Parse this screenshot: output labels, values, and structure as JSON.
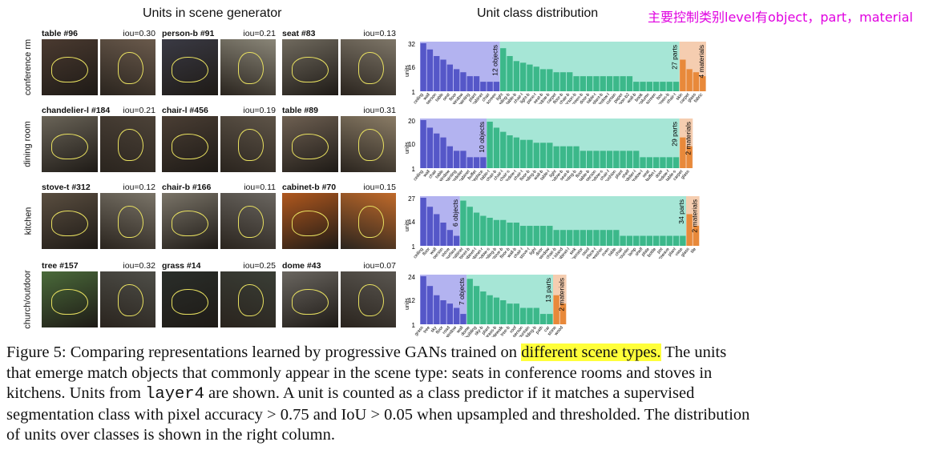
{
  "headers": {
    "left": "Units in scene generator",
    "right": "Unit class distribution",
    "note": "主要控制类别level有object，part，material"
  },
  "rows": [
    {
      "scene": "conference rm",
      "cells": [
        {
          "name": "table #96",
          "iou": "iou=0.30",
          "bg1": "#4a3a30",
          "bg2": "#6a5a4c"
        },
        {
          "name": "person-b #91",
          "iou": "iou=0.21",
          "bg1": "#3a3a44",
          "bg2": "#8a8678"
        },
        {
          "name": "seat #83",
          "iou": "iou=0.13",
          "bg1": "#706a5e",
          "bg2": "#7e7668"
        }
      ]
    },
    {
      "scene": "dining room",
      "cells": [
        {
          "name": "chandelier-l #184",
          "iou": "iou=0.21",
          "bg1": "#6a6458",
          "bg2": "#4c4238"
        },
        {
          "name": "chair-l #456",
          "iou": "iou=0.19",
          "bg1": "#4a3e34",
          "bg2": "#5e5448"
        },
        {
          "name": "table #89",
          "iou": "iou=0.31",
          "bg1": "#6e6052",
          "bg2": "#8a7c66"
        }
      ]
    },
    {
      "scene": "kitchen",
      "cells": [
        {
          "name": "stove-t #312",
          "iou": "iou=0.12",
          "bg1": "#5a4e40",
          "bg2": "#7a7468"
        },
        {
          "name": "chair-b #166",
          "iou": "iou=0.11",
          "bg1": "#7a7468",
          "bg2": "#6a6660"
        },
        {
          "name": "cabinet-b #70",
          "iou": "iou=0.15",
          "bg1": "#b0581e",
          "bg2": "#c06a2a"
        }
      ]
    },
    {
      "scene": "church/outdoor",
      "cells": [
        {
          "name": "tree #157",
          "iou": "iou=0.32",
          "bg1": "#4a6a3a",
          "bg2": "#4e4e48"
        },
        {
          "name": "grass #14",
          "iou": "iou=0.25",
          "bg1": "#2a2e2a",
          "bg2": "#3a3e36"
        },
        {
          "name": "dome #43",
          "iou": "iou=0.07",
          "bg1": "#6a6660",
          "bg2": "#5a5650"
        }
      ]
    }
  ],
  "colors": {
    "object": "#5557c8",
    "object_bg": "#b3b3f0",
    "part": "#3cb88a",
    "part_bg": "#a6e6d6",
    "material": "#e8893a",
    "material_bg": "#f5cdb0"
  },
  "chart_data": [
    {
      "type": "bar",
      "scene": "conference rm",
      "yscale": "log",
      "yticks": [
        "1",
        "16",
        "32"
      ],
      "ylabel": "units",
      "groups": [
        {
          "label": "12 objects",
          "categories": [
            "ceiling",
            "wall",
            "person",
            "table",
            "seat",
            "floor",
            "window",
            "painting",
            "plant",
            "cabinet",
            "chair",
            "screen"
          ],
          "values": [
            32,
            20,
            12,
            9,
            6,
            4,
            3,
            2,
            2,
            1,
            1,
            1
          ]
        },
        {
          "label": "27 parts",
          "categories": [
            "light",
            "ceiling-b",
            "table-b",
            "chair-l",
            "light-b",
            "pane-t",
            "seat-b",
            "window-b",
            "carpet",
            "floor-b",
            "chair-b",
            "person-b",
            "screen-b",
            "door-b",
            "table-t",
            "plant-b",
            "window-l",
            "curtain",
            "paper",
            "person-b2",
            "wall-b",
            "book",
            "column",
            "silver screen",
            "box",
            "silver screen-b",
            "chair-t"
          ],
          "values": [
            22,
            12,
            8,
            7,
            6,
            5,
            4,
            4,
            3,
            3,
            3,
            2,
            2,
            2,
            2,
            2,
            2,
            2,
            2,
            2,
            1,
            1,
            1,
            1,
            1,
            1,
            1
          ]
        },
        {
          "label": "4 materials",
          "categories": [
            "skin",
            "carpet",
            "glass",
            "fabric"
          ],
          "values": [
            9,
            4,
            3,
            2
          ]
        }
      ]
    },
    {
      "type": "bar",
      "scene": "dining room",
      "yscale": "log",
      "yticks": [
        "1",
        "10",
        "20"
      ],
      "ylabel": "units",
      "groups": [
        {
          "label": "10 objects",
          "categories": [
            "ceiling",
            "wall",
            "chair",
            "table",
            "window",
            "painting",
            "chandelier",
            "cabinet",
            "buffet",
            "fireplace"
          ],
          "values": [
            20,
            12,
            8,
            6,
            3,
            2,
            2,
            1,
            1,
            1
          ]
        },
        {
          "label": "29 parts",
          "categories": [
            "table-t",
            "chair-b",
            "chair-l",
            "chair-s",
            "window-t",
            "chair-t",
            "floor-b",
            "ceiling-b",
            "wall-b",
            "table-l",
            "light",
            "window-b",
            "seat-b",
            "painting-b",
            "floor",
            "table-b",
            "person",
            "window-s",
            "chair-f",
            "cushion",
            "plant",
            "shelf",
            "chandelier-l",
            "window-l",
            "seat",
            "buffet-t",
            "door",
            "window-f",
            "table-s"
          ],
          "values": [
            18,
            12,
            9,
            7,
            6,
            5,
            5,
            4,
            4,
            4,
            3,
            3,
            3,
            3,
            2,
            2,
            2,
            2,
            2,
            2,
            2,
            2,
            2,
            1,
            1,
            1,
            1,
            1,
            1
          ]
        },
        {
          "label": "2 materials",
          "categories": [
            "carpet",
            "glass"
          ],
          "values": [
            6,
            3
          ]
        }
      ]
    },
    {
      "type": "bar",
      "scene": "kitchen",
      "yscale": "log",
      "yticks": [
        "1",
        "14",
        "27"
      ],
      "ylabel": "units",
      "groups": [
        {
          "label": "6 objects",
          "categories": [
            "ceiling",
            "floor",
            "wall",
            "person",
            "stove",
            "work surface"
          ],
          "values": [
            27,
            14,
            8,
            4,
            2,
            1
          ]
        },
        {
          "label": "34 parts",
          "categories": [
            "cabinet",
            "cabinet-b",
            "cabinet-t",
            "cabinet-r",
            "window-s",
            "ceiling-b",
            "stove-b",
            "floor-b",
            "wall-b",
            "chair-t",
            "stove-t",
            "light",
            "door",
            "window",
            "chair-b",
            "kitchen island",
            "cabinet-l",
            "sink",
            "refrigerator",
            "stool",
            "work surface-t",
            "dishwasher",
            "oven",
            "table",
            "chair",
            "counter",
            "lamp",
            "shelf",
            "plate",
            "bottle",
            "pot",
            "microwave",
            "plant",
            "vase"
          ],
          "values": [
            22,
            14,
            9,
            7,
            6,
            5,
            5,
            4,
            4,
            3,
            3,
            3,
            3,
            3,
            2,
            2,
            2,
            2,
            2,
            2,
            2,
            2,
            2,
            2,
            1,
            1,
            1,
            1,
            1,
            1,
            1,
            1,
            1,
            1
          ]
        },
        {
          "label": "2 materials",
          "categories": [
            "glass",
            "tile"
          ],
          "values": [
            8,
            3
          ]
        }
      ]
    },
    {
      "type": "bar",
      "scene": "church/outdoor",
      "yscale": "log",
      "yticks": [
        "1",
        "12",
        "24"
      ],
      "ylabel": "units",
      "groups": [
        {
          "label": "7 objects",
          "categories": [
            "grass",
            "tree",
            "sky",
            "floor",
            "road",
            "window",
            "wall"
          ],
          "values": [
            24,
            12,
            6,
            4,
            3,
            2,
            1
          ]
        },
        {
          "label": "13 parts",
          "categories": [
            "dome",
            "building",
            "sky-b",
            "plant",
            "grass-b",
            "sidewalk",
            "tree-b",
            "roof",
            "person",
            "mountain",
            "building-b",
            "path",
            "car"
          ],
          "values": [
            20,
            12,
            8,
            6,
            5,
            4,
            3,
            3,
            2,
            2,
            2,
            1,
            1
          ]
        },
        {
          "label": "2 materials",
          "categories": [
            "stone",
            "wood"
          ],
          "values": [
            6,
            3
          ]
        }
      ]
    }
  ],
  "caption": {
    "p1": "Figure 5: Comparing representations learned by progressive GANs trained on ",
    "hl": "different scene types.",
    "p2": " The units that emerge match objects that commonly appear in the scene type: seats in conference rooms and stoves in kitchens. Units from ",
    "code": "layer4",
    "p3": " are shown. A unit is counted as a class predictor if it matches a supervised segmentation class with pixel accuracy > 0.75 and IoU > 0.05 when upsampled and thresholded. The distribution of units over classes is shown in the right column."
  }
}
